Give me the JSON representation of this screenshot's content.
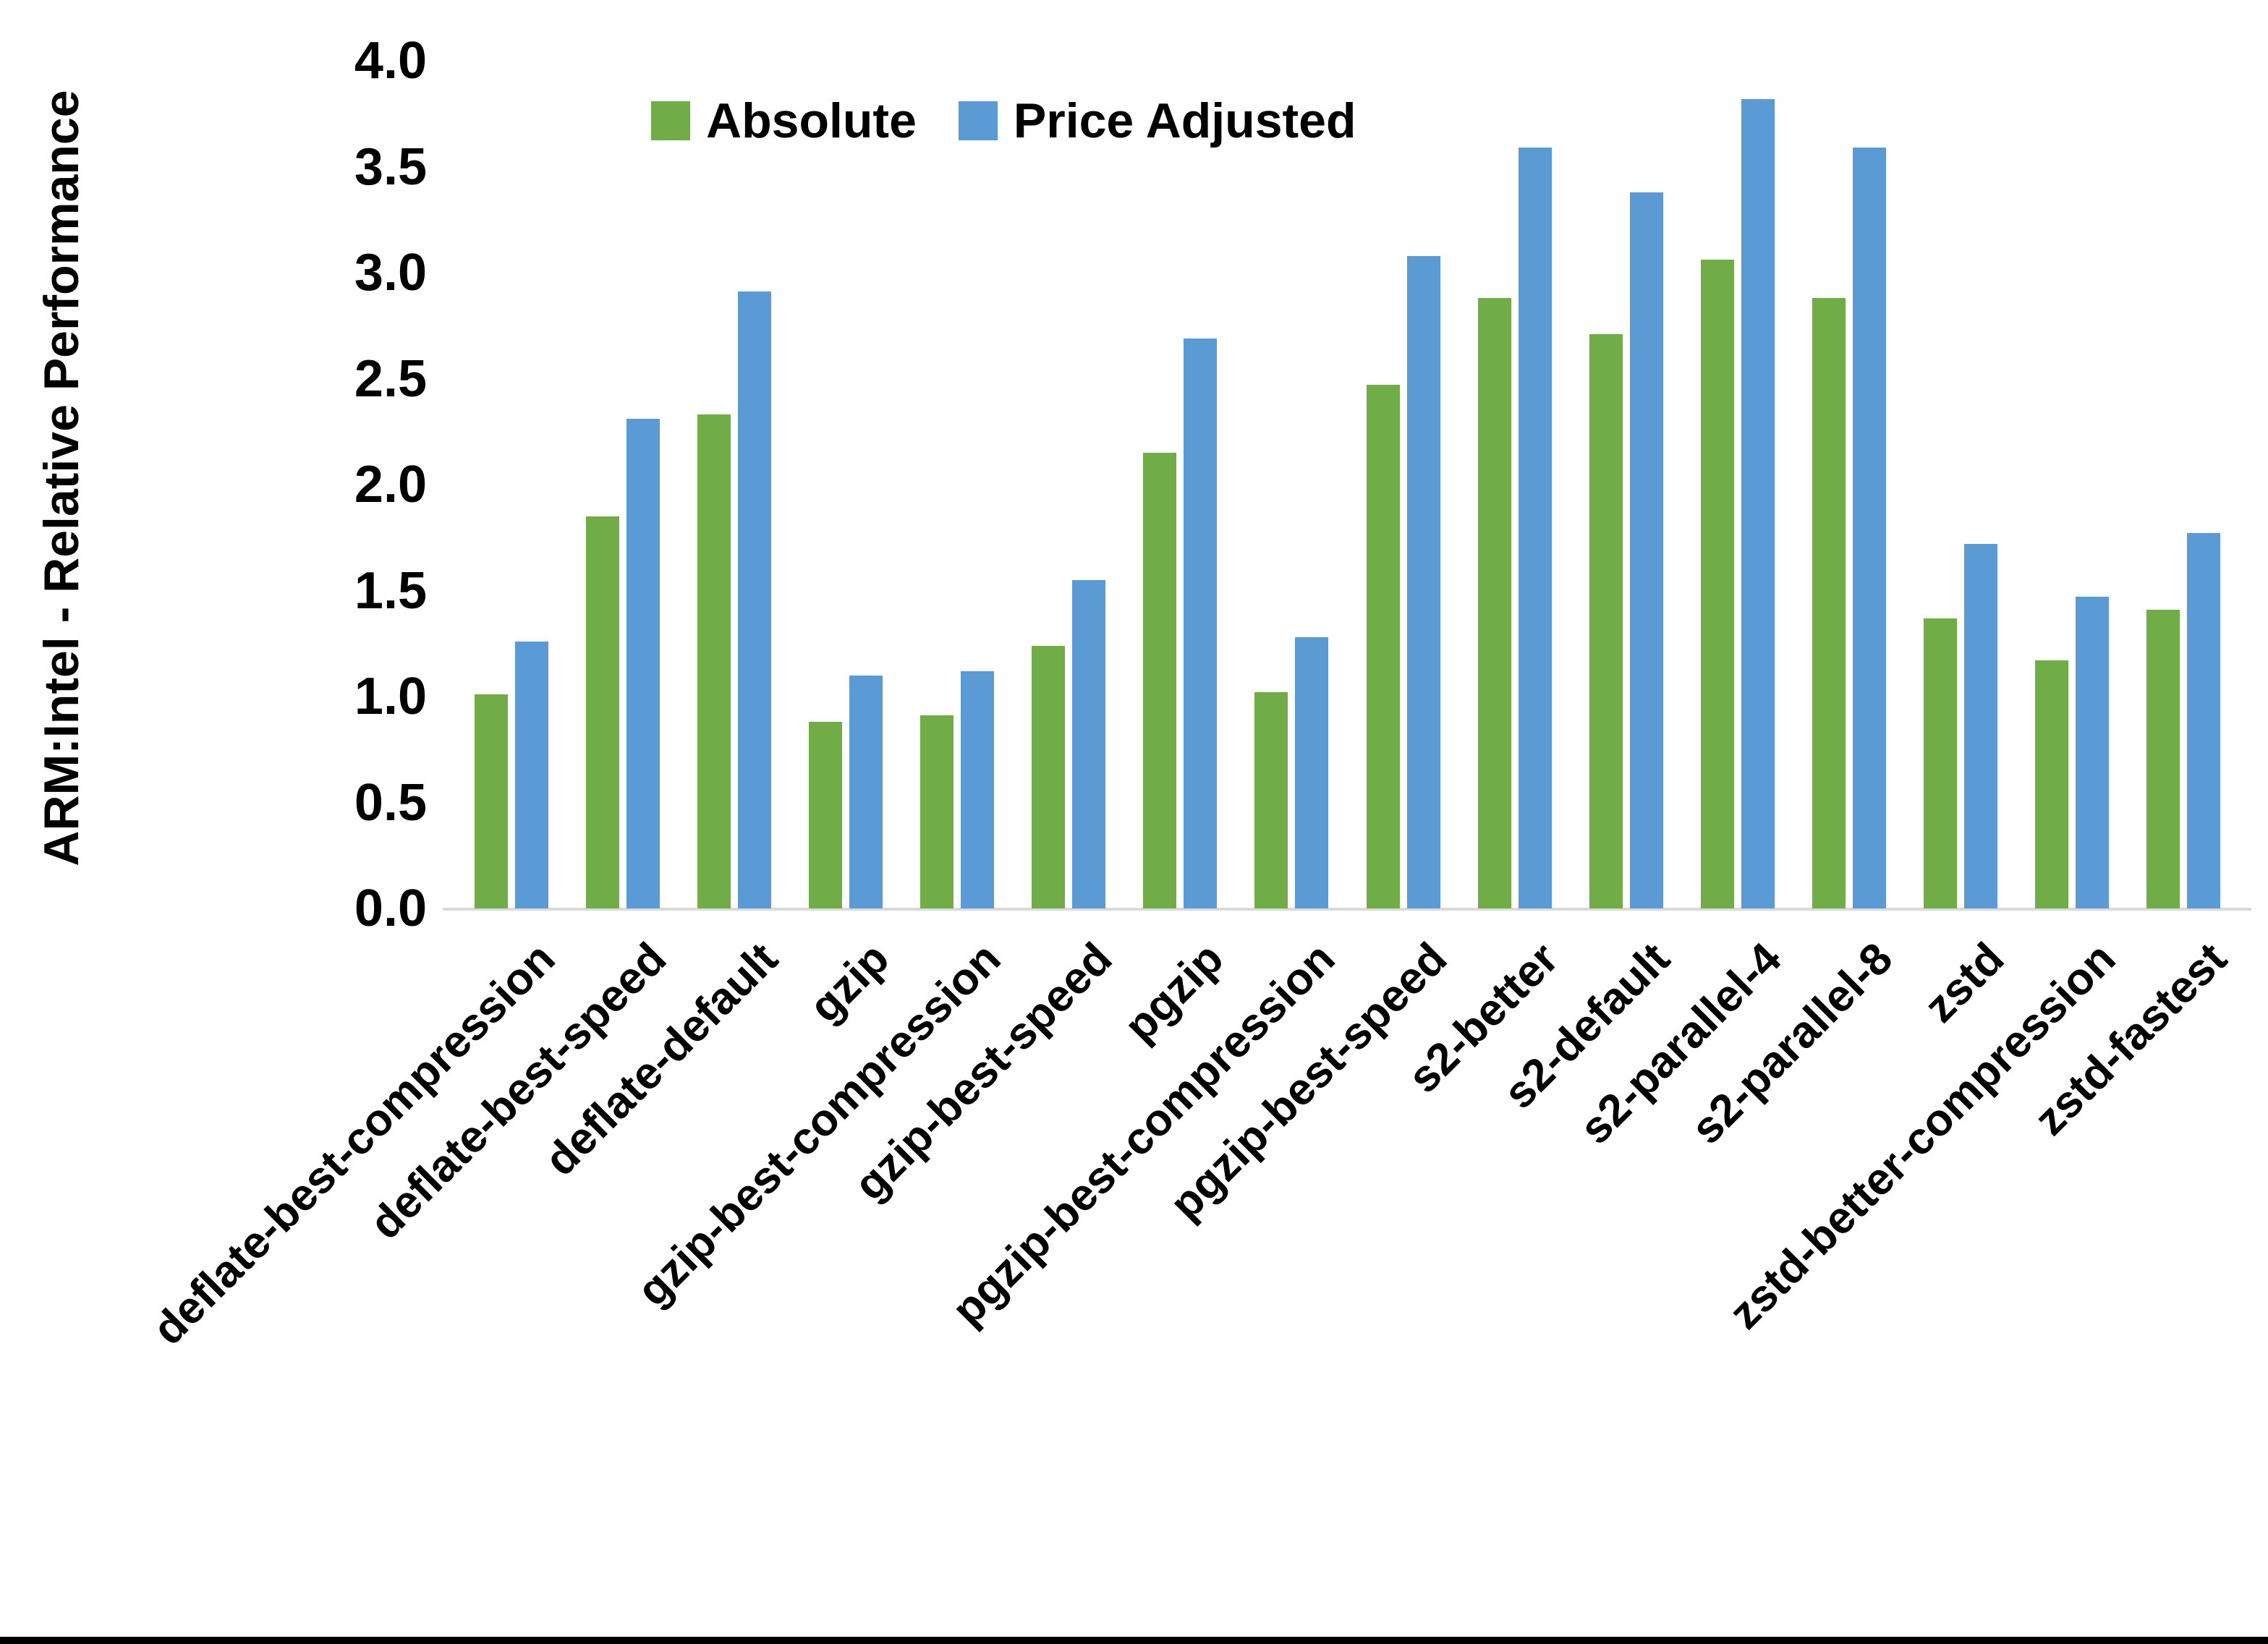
{
  "page": {
    "bottom_border_color": "#000000",
    "background": "#ffffff"
  },
  "chart_data": {
    "type": "bar",
    "title": "",
    "xlabel": "",
    "ylabel": "ARM:Intel - Relative Performance",
    "ylim": [
      0.0,
      4.0
    ],
    "ytick_step": 0.5,
    "ytick_labels": [
      "0.0",
      "0.5",
      "1.0",
      "1.5",
      "2.0",
      "2.5",
      "3.0",
      "3.5",
      "4.0"
    ],
    "grid": false,
    "legend_position": "top-center",
    "axis_line_color": "#d9d9d9",
    "categories": [
      "deflate-best-compression",
      "deflate-best-speed",
      "deflate-default",
      "gzip",
      "gzip-best-compression",
      "gzip-best-speed",
      "pgzip",
      "pgzip-best-compression",
      "pgzip-best-speed",
      "s2-better",
      "s2-default",
      "s2-parallel-4",
      "s2-parallel-8",
      "zstd",
      "zstd-better-compression",
      "zstd-fastest"
    ],
    "series": [
      {
        "name": "Absolute",
        "color": "#70AD47",
        "values": [
          1.01,
          1.85,
          2.33,
          0.88,
          0.91,
          1.24,
          2.15,
          1.02,
          2.47,
          2.88,
          2.71,
          3.06,
          2.88,
          1.37,
          1.17,
          1.41
        ]
      },
      {
        "name": "Price Adjusted",
        "color": "#5B9BD5",
        "values": [
          1.26,
          2.31,
          2.91,
          1.1,
          1.12,
          1.55,
          2.69,
          1.28,
          3.08,
          3.59,
          3.38,
          3.82,
          3.59,
          1.72,
          1.47,
          1.77
        ]
      }
    ]
  }
}
